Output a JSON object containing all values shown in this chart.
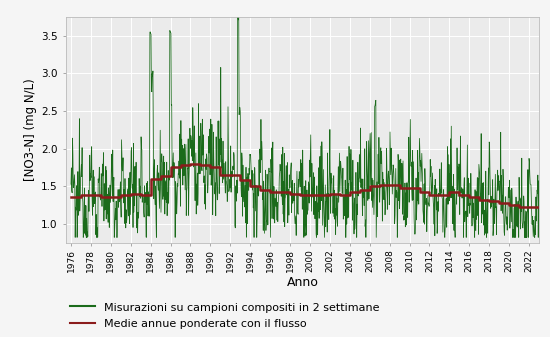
{
  "xlabel": "Anno",
  "ylabel": "[NO3-N] (mg N/L)",
  "ylim": [
    0.75,
    3.75
  ],
  "yticks": [
    1.0,
    1.5,
    2.0,
    2.5,
    3.0,
    3.5
  ],
  "xlim": [
    1975.5,
    2023.0
  ],
  "xticks": [
    1976,
    1978,
    1980,
    1982,
    1984,
    1986,
    1988,
    1990,
    1992,
    1994,
    1996,
    1998,
    2000,
    2002,
    2004,
    2006,
    2008,
    2010,
    2012,
    2014,
    2016,
    2018,
    2020,
    2022
  ],
  "bg_color": "#ebebeb",
  "fig_color": "#f5f5f5",
  "grid_color": "#ffffff",
  "green_color": "#1b6b1b",
  "red_color": "#8b1c1c",
  "legend_labels": [
    "Misurazioni su campioni compositi in 2 settimane",
    "Medie annue ponderate con il flusso"
  ],
  "annual_years": [
    1976,
    1977,
    1978,
    1979,
    1980,
    1981,
    1982,
    1983,
    1984,
    1985,
    1986,
    1987,
    1988,
    1989,
    1990,
    1991,
    1992,
    1993,
    1994,
    1995,
    1996,
    1997,
    1998,
    1999,
    2000,
    2001,
    2002,
    2003,
    2004,
    2005,
    2006,
    2007,
    2008,
    2009,
    2010,
    2011,
    2012,
    2013,
    2014,
    2015,
    2016,
    2017,
    2018,
    2019,
    2020,
    2021,
    2022
  ],
  "annual_values": [
    1.35,
    1.38,
    1.38,
    1.35,
    1.35,
    1.38,
    1.4,
    1.38,
    1.6,
    1.63,
    1.75,
    1.78,
    1.8,
    1.78,
    1.75,
    1.65,
    1.65,
    1.58,
    1.5,
    1.45,
    1.42,
    1.42,
    1.4,
    1.38,
    1.38,
    1.38,
    1.4,
    1.38,
    1.42,
    1.45,
    1.5,
    1.52,
    1.52,
    1.48,
    1.48,
    1.42,
    1.38,
    1.38,
    1.42,
    1.38,
    1.35,
    1.32,
    1.3,
    1.28,
    1.25,
    1.22,
    1.22
  ],
  "seed": 12345,
  "noise_std": 0.3,
  "seasonal_amp": 0.25
}
